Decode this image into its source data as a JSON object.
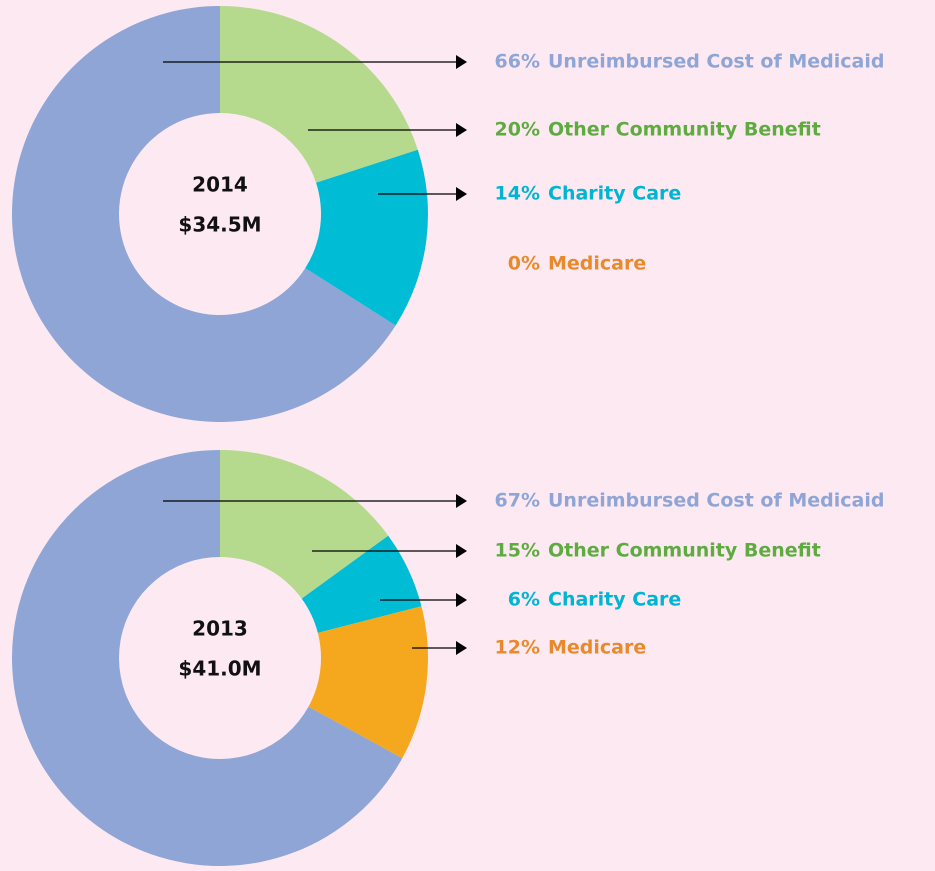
{
  "chart_data": [
    {
      "type": "pie",
      "title": "2014",
      "subtitle": "$34.5M",
      "categories": [
        "Unreimbursed Cost of Medicaid",
        "Other Community Benefit",
        "Charity Care",
        "Medicare"
      ],
      "values": [
        66,
        20,
        14,
        0
      ],
      "value_labels": [
        "66%",
        "20%",
        "14%",
        "0%"
      ],
      "colors": [
        "#8ea5d6",
        "#b5d98d",
        "#00bcd4",
        "#f5a81e"
      ],
      "label_colors": [
        "#8ea5d6",
        "#5eab3f",
        "#00b5d1",
        "#e88a2c"
      ]
    },
    {
      "type": "pie",
      "title": "2013",
      "subtitle": "$41.0M",
      "categories": [
        "Unreimbursed Cost of Medicaid",
        "Other Community Benefit",
        "Charity Care",
        "Medicare"
      ],
      "values": [
        67,
        15,
        6,
        12
      ],
      "value_labels": [
        "67%",
        "15%",
        "6%",
        "12%"
      ],
      "colors": [
        "#8ea5d6",
        "#b5d98d",
        "#00bcd4",
        "#f5a81e"
      ],
      "label_colors": [
        "#8ea5d6",
        "#5eab3f",
        "#00b5d1",
        "#e88a2c"
      ]
    }
  ]
}
